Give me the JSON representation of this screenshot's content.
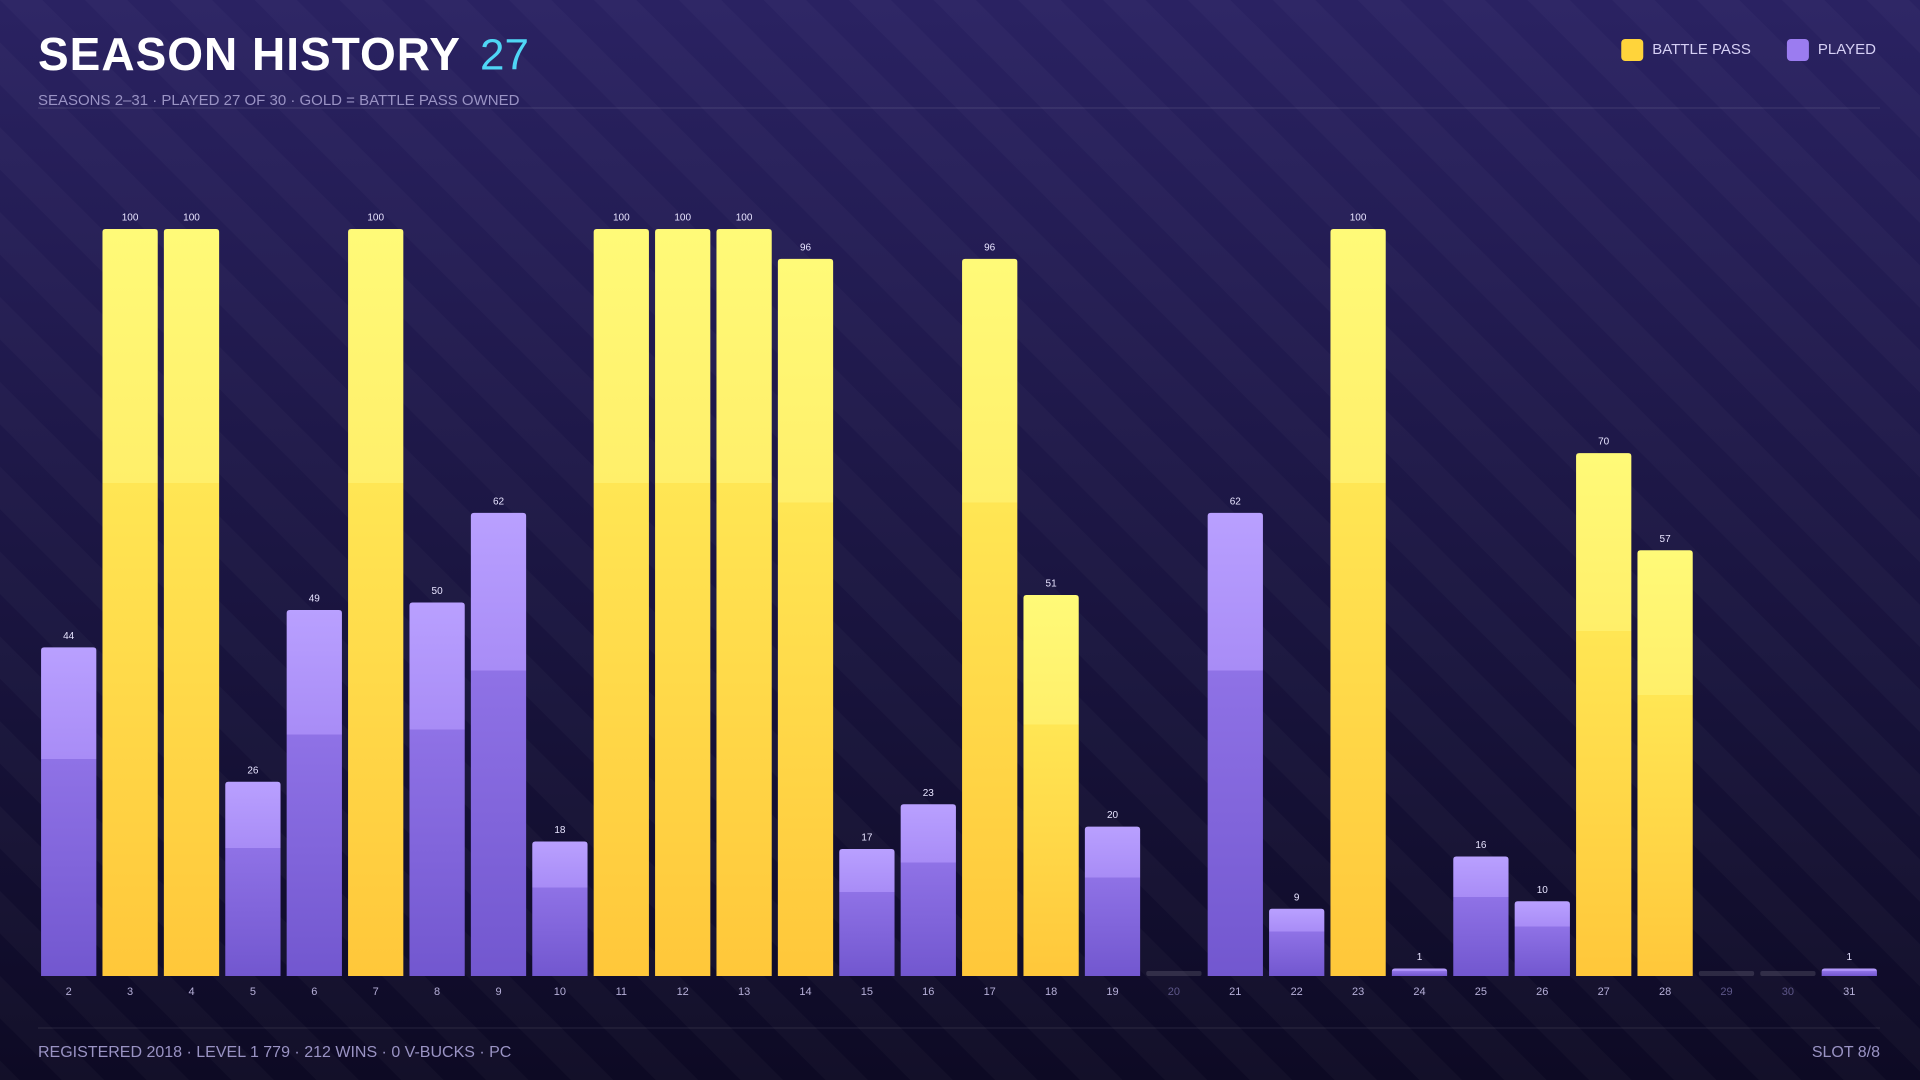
{
  "header": {
    "title": "SEASON HISTORY",
    "count": "27",
    "subtitle": "SEASONS 2–31 · PLAYED 27 OF 30 · GOLD = BATTLE PASS OWNED"
  },
  "chart_data": {
    "type": "bar",
    "stacked": false,
    "categories": [
      "2",
      "3",
      "4",
      "5",
      "6",
      "7",
      "8",
      "9",
      "10",
      "11",
      "12",
      "13",
      "14",
      "15",
      "16",
      "17",
      "18",
      "19",
      "20",
      "21",
      "22",
      "23",
      "24",
      "25",
      "26",
      "27",
      "28",
      "29",
      "30",
      "31"
    ],
    "series": [
      {
        "name": "BATTLE PASS",
        "color": "#ffd43b",
        "values": [
          null,
          100,
          100,
          null,
          null,
          100,
          null,
          null,
          null,
          100,
          100,
          100,
          96,
          null,
          null,
          96,
          51,
          null,
          null,
          null,
          null,
          100,
          null,
          null,
          null,
          70,
          57,
          null,
          null,
          null
        ]
      },
      {
        "name": "PLAYED",
        "color": "#9b7cf0",
        "values": [
          44,
          null,
          null,
          26,
          49,
          null,
          50,
          62,
          18,
          null,
          null,
          null,
          null,
          17,
          23,
          null,
          null,
          20,
          null,
          62,
          9,
          null,
          1,
          16,
          10,
          null,
          null,
          null,
          null,
          1
        ]
      }
    ],
    "ylim": [
      0,
      100
    ],
    "legend": "top-right"
  },
  "footer": {
    "stats": "REGISTERED 2018 · LEVEL 1 779 · 212 WINS · 0 V-BUCKS · PC",
    "slot": "SLOT 8/8"
  }
}
